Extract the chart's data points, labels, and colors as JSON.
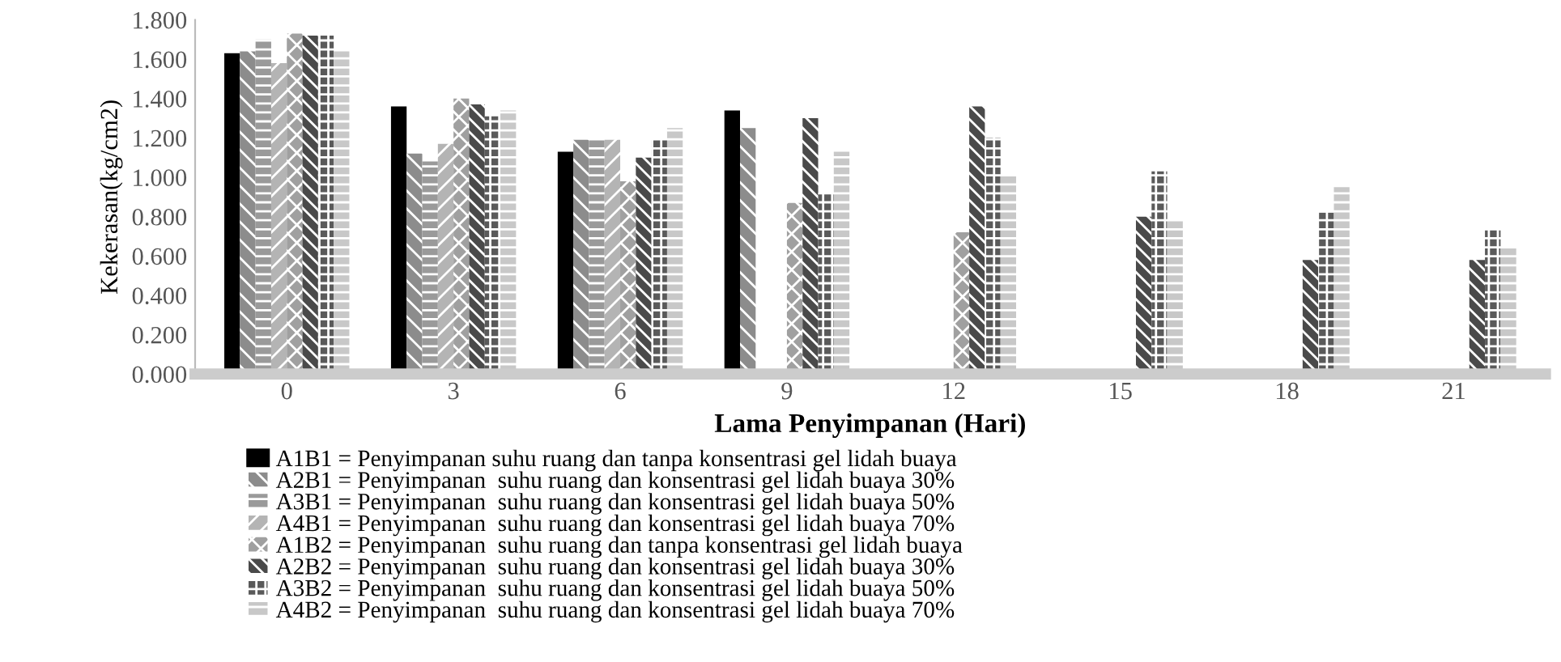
{
  "chart_data": {
    "type": "bar",
    "xlabel": "Lama Penyimpanan (Hari)",
    "ylabel": "Kekerasan(kg/cm2)",
    "categories": [
      "0",
      "3",
      "6",
      "9",
      "12",
      "15",
      "18",
      "21"
    ],
    "series": [
      {
        "name": "A1B1 = Penyimpanan suhu ruang dan tanpa konsentrasi gel lidah buaya",
        "color": "#000000",
        "values": [
          1.63,
          1.36,
          1.13,
          1.34,
          null,
          null,
          null,
          null
        ]
      },
      {
        "name": "A2B1 = Penyimpanan  suhu ruang dan konsentrasi gel lidah buaya 30%",
        "color": "#8c8c8c",
        "values": [
          1.64,
          1.12,
          1.19,
          1.25,
          null,
          null,
          null,
          null
        ]
      },
      {
        "name": "A3B1 = Penyimpanan  suhu ruang dan konsentrasi gel lidah buaya 50%",
        "color": "#9a9a9a",
        "values": [
          1.7,
          1.08,
          1.19,
          null,
          null,
          null,
          null,
          null
        ]
      },
      {
        "name": "A4B1 = Penyimpanan  suhu ruang dan konsentrasi gel lidah buaya 70%",
        "color": "#b4b4b4",
        "values": [
          1.58,
          1.17,
          1.19,
          null,
          null,
          null,
          null,
          null
        ]
      },
      {
        "name": "A1B2 = Penyimpanan  suhu ruang dan tanpa konsentrasi gel lidah buaya",
        "color": "#a0a0a0",
        "values": [
          1.73,
          1.4,
          0.98,
          0.87,
          0.72,
          null,
          null,
          null
        ]
      },
      {
        "name": "A2B2 = Penyimpanan  suhu ruang dan konsentrasi gel lidah buaya 30%",
        "color": "#4a4a4a",
        "values": [
          1.72,
          1.37,
          1.1,
          1.3,
          1.36,
          0.8,
          0.58,
          0.58
        ]
      },
      {
        "name": "A3B2 = Penyimpanan  suhu ruang dan konsentrasi gel lidah buaya 50%",
        "color": "#5a5a5a",
        "values": [
          1.72,
          1.31,
          1.19,
          0.92,
          1.2,
          1.03,
          0.82,
          0.74
        ]
      },
      {
        "name": "A4B2 = Penyimpanan  suhu ruang dan konsentrasi gel lidah buaya 70%",
        "color": "#c8c8c8",
        "values": [
          1.64,
          1.34,
          1.25,
          1.13,
          1.01,
          0.78,
          0.95,
          0.64
        ]
      }
    ],
    "ylim": [
      0,
      1.8
    ],
    "yticks": [
      {
        "value": 0,
        "label": "0.000"
      },
      {
        "value": 0.2,
        "label": "0.200"
      },
      {
        "value": 0.4,
        "label": "0.400"
      },
      {
        "value": 0.6,
        "label": "0.600"
      },
      {
        "value": 0.8,
        "label": "0.800"
      },
      {
        "value": 1.0,
        "label": "1.000"
      },
      {
        "value": 1.2,
        "label": "1.200"
      },
      {
        "value": 1.4,
        "label": "1.400"
      },
      {
        "value": 1.6,
        "label": "1.600"
      },
      {
        "value": 1.8,
        "label": "1.800"
      }
    ],
    "legend": "bottom",
    "grid": false
  }
}
